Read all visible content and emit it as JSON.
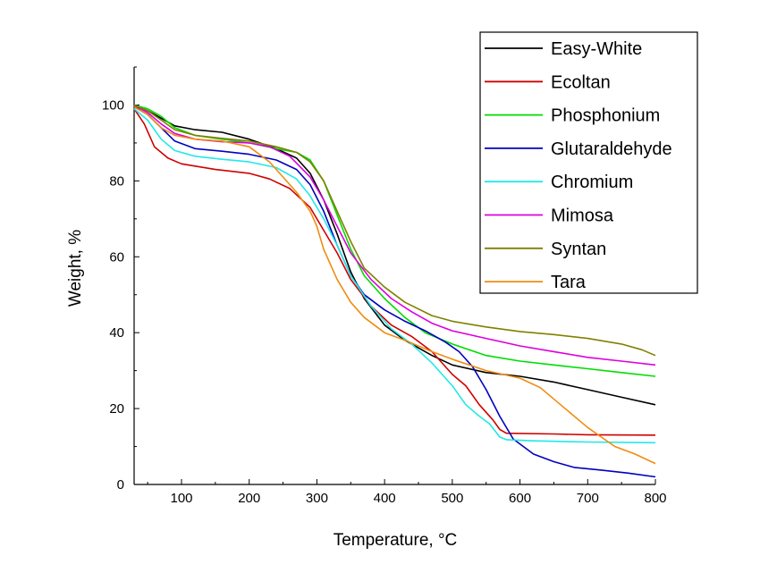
{
  "chart_data": {
    "type": "line",
    "xlabel": "Temperature, °C",
    "ylabel": "Weight, %",
    "xlim": [
      30,
      800
    ],
    "ylim": [
      0,
      110
    ],
    "xticks": [
      100,
      200,
      300,
      400,
      500,
      600,
      700,
      800
    ],
    "yticks": [
      0,
      20,
      40,
      60,
      80,
      100
    ],
    "grid": false,
    "legend_position": "top-right",
    "series": [
      {
        "name": "Easy-White",
        "color": "#000000",
        "points": [
          [
            30,
            99.5
          ],
          [
            50,
            98.5
          ],
          [
            70,
            96.5
          ],
          [
            90,
            94.5
          ],
          [
            120,
            93.5
          ],
          [
            160,
            92.8
          ],
          [
            200,
            91
          ],
          [
            240,
            88.5
          ],
          [
            270,
            86
          ],
          [
            290,
            82
          ],
          [
            310,
            75
          ],
          [
            330,
            66
          ],
          [
            350,
            56
          ],
          [
            370,
            49
          ],
          [
            400,
            42
          ],
          [
            430,
            38
          ],
          [
            470,
            34
          ],
          [
            500,
            31.5
          ],
          [
            550,
            29.5
          ],
          [
            600,
            28.5
          ],
          [
            650,
            27
          ],
          [
            700,
            25
          ],
          [
            750,
            23
          ],
          [
            800,
            21
          ]
        ]
      },
      {
        "name": "Ecoltan",
        "color": "#d00000",
        "points": [
          [
            30,
            99
          ],
          [
            45,
            95
          ],
          [
            60,
            89
          ],
          [
            80,
            86
          ],
          [
            100,
            84.5
          ],
          [
            150,
            83
          ],
          [
            200,
            82
          ],
          [
            230,
            80.5
          ],
          [
            260,
            78
          ],
          [
            290,
            73
          ],
          [
            310,
            67
          ],
          [
            330,
            61
          ],
          [
            350,
            54
          ],
          [
            380,
            47
          ],
          [
            410,
            42
          ],
          [
            440,
            39
          ],
          [
            470,
            35
          ],
          [
            500,
            29
          ],
          [
            520,
            26
          ],
          [
            540,
            21
          ],
          [
            560,
            17
          ],
          [
            570,
            14.5
          ],
          [
            580,
            13.5
          ],
          [
            650,
            13.3
          ],
          [
            700,
            13.1
          ],
          [
            800,
            13
          ]
        ]
      },
      {
        "name": "Phosphonium",
        "color": "#00dd00",
        "points": [
          [
            30,
            100
          ],
          [
            50,
            99
          ],
          [
            70,
            97
          ],
          [
            90,
            94
          ],
          [
            120,
            92
          ],
          [
            160,
            91
          ],
          [
            200,
            90
          ],
          [
            240,
            88.5
          ],
          [
            270,
            87.5
          ],
          [
            290,
            85.5
          ],
          [
            310,
            80
          ],
          [
            330,
            71
          ],
          [
            350,
            62
          ],
          [
            370,
            55
          ],
          [
            400,
            49
          ],
          [
            430,
            44
          ],
          [
            460,
            40
          ],
          [
            500,
            37
          ],
          [
            550,
            34
          ],
          [
            600,
            32.5
          ],
          [
            650,
            31.5
          ],
          [
            700,
            30.5
          ],
          [
            750,
            29.5
          ],
          [
            800,
            28.5
          ]
        ]
      },
      {
        "name": "Glutaraldehyde",
        "color": "#0000c0",
        "points": [
          [
            30,
            99.5
          ],
          [
            50,
            97.5
          ],
          [
            70,
            94
          ],
          [
            90,
            90.5
          ],
          [
            120,
            88.5
          ],
          [
            160,
            87.8
          ],
          [
            200,
            87
          ],
          [
            240,
            85.5
          ],
          [
            270,
            83
          ],
          [
            290,
            79
          ],
          [
            310,
            72
          ],
          [
            330,
            63
          ],
          [
            350,
            55
          ],
          [
            370,
            50
          ],
          [
            400,
            46
          ],
          [
            430,
            43
          ],
          [
            460,
            40.5
          ],
          [
            490,
            37.5
          ],
          [
            510,
            35
          ],
          [
            530,
            31
          ],
          [
            550,
            25
          ],
          [
            570,
            18
          ],
          [
            590,
            12
          ],
          [
            620,
            8
          ],
          [
            650,
            6
          ],
          [
            680,
            4.5
          ],
          [
            720,
            3.8
          ],
          [
            760,
            3
          ],
          [
            800,
            2
          ]
        ]
      },
      {
        "name": "Chromium",
        "color": "#22e8e8",
        "points": [
          [
            30,
            99
          ],
          [
            50,
            96
          ],
          [
            70,
            91
          ],
          [
            90,
            88
          ],
          [
            120,
            86.5
          ],
          [
            160,
            85.7
          ],
          [
            200,
            85
          ],
          [
            240,
            83.5
          ],
          [
            270,
            80.5
          ],
          [
            290,
            76
          ],
          [
            310,
            70
          ],
          [
            330,
            63
          ],
          [
            350,
            55
          ],
          [
            380,
            47
          ],
          [
            410,
            41
          ],
          [
            440,
            37
          ],
          [
            470,
            32
          ],
          [
            500,
            26
          ],
          [
            520,
            21
          ],
          [
            540,
            18
          ],
          [
            555,
            16
          ],
          [
            570,
            12.5
          ],
          [
            580,
            11.8
          ],
          [
            620,
            11.5
          ],
          [
            700,
            11.2
          ],
          [
            800,
            11
          ]
        ]
      },
      {
        "name": "Mimosa",
        "color": "#dd00dd",
        "points": [
          [
            30,
            100
          ],
          [
            50,
            98
          ],
          [
            70,
            95
          ],
          [
            90,
            92.5
          ],
          [
            120,
            91
          ],
          [
            160,
            90.3
          ],
          [
            200,
            90
          ],
          [
            230,
            89
          ],
          [
            260,
            86.5
          ],
          [
            290,
            81
          ],
          [
            310,
            75
          ],
          [
            330,
            68
          ],
          [
            350,
            61
          ],
          [
            380,
            54
          ],
          [
            410,
            49
          ],
          [
            440,
            45.5
          ],
          [
            470,
            42.5
          ],
          [
            500,
            40.5
          ],
          [
            550,
            38.5
          ],
          [
            600,
            36.5
          ],
          [
            650,
            35
          ],
          [
            700,
            33.5
          ],
          [
            750,
            32.5
          ],
          [
            800,
            31.5
          ]
        ]
      },
      {
        "name": "Syntan",
        "color": "#808000",
        "points": [
          [
            30,
            100
          ],
          [
            50,
            98.5
          ],
          [
            70,
            96
          ],
          [
            90,
            93.5
          ],
          [
            120,
            92
          ],
          [
            160,
            91.2
          ],
          [
            200,
            90.5
          ],
          [
            240,
            89
          ],
          [
            270,
            87.5
          ],
          [
            290,
            85
          ],
          [
            310,
            80
          ],
          [
            330,
            72
          ],
          [
            350,
            64
          ],
          [
            370,
            57
          ],
          [
            400,
            52
          ],
          [
            430,
            48
          ],
          [
            470,
            44.5
          ],
          [
            500,
            43
          ],
          [
            550,
            41.5
          ],
          [
            600,
            40.3
          ],
          [
            650,
            39.5
          ],
          [
            700,
            38.5
          ],
          [
            750,
            37
          ],
          [
            780,
            35.5
          ],
          [
            800,
            34
          ]
        ]
      },
      {
        "name": "Tara",
        "color": "#f08c10",
        "points": [
          [
            30,
            99.5
          ],
          [
            50,
            97.5
          ],
          [
            70,
            94
          ],
          [
            90,
            92
          ],
          [
            120,
            91
          ],
          [
            160,
            90.5
          ],
          [
            200,
            89
          ],
          [
            230,
            85
          ],
          [
            250,
            81
          ],
          [
            270,
            77
          ],
          [
            290,
            72
          ],
          [
            300,
            68
          ],
          [
            310,
            62
          ],
          [
            330,
            54
          ],
          [
            350,
            48
          ],
          [
            370,
            44
          ],
          [
            400,
            40
          ],
          [
            430,
            38
          ],
          [
            470,
            35
          ],
          [
            500,
            33
          ],
          [
            550,
            30
          ],
          [
            600,
            28
          ],
          [
            630,
            25.5
          ],
          [
            660,
            21
          ],
          [
            700,
            15
          ],
          [
            740,
            10
          ],
          [
            770,
            8
          ],
          [
            800,
            5.5
          ]
        ]
      }
    ]
  }
}
